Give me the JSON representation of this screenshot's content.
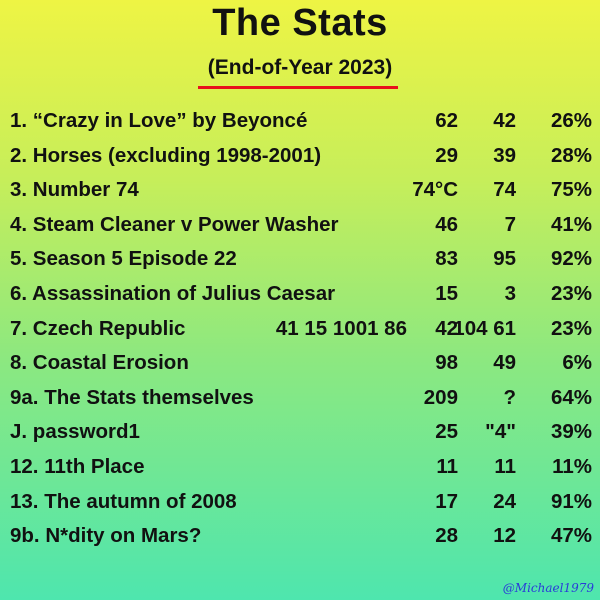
{
  "title": "The Stats",
  "subtitle": "(End-of-Year 2023)",
  "rows": [
    {
      "label": "1. “Crazy in Love” by Beyoncé",
      "extra": "",
      "c1": "62",
      "c2": "42",
      "c3": "26%"
    },
    {
      "label": "2. Horses (excluding 1998-2001)",
      "extra": "",
      "c1": "29",
      "c2": "39",
      "c3": "28%"
    },
    {
      "label": "3. Number 74",
      "extra": "",
      "c1": "74°C",
      "c2": "74",
      "c3": "75%"
    },
    {
      "label": "4. Steam Cleaner v Power Washer",
      "extra": "",
      "c1": "46",
      "c2": "7",
      "c3": "41%"
    },
    {
      "label": "5. Season 5 Episode 22",
      "extra": "",
      "c1": "83",
      "c2": "95",
      "c3": "92%"
    },
    {
      "label": "6. Assassination of Julius Caesar",
      "extra": "",
      "c1": "15",
      "c2": "3",
      "c3": "23%"
    },
    {
      "label": "7. Czech Republic",
      "extra": "41 15 1001 86",
      "c1": "42",
      "c2": "104 61",
      "c3": "23%"
    },
    {
      "label": "8. Coastal Erosion",
      "extra": "",
      "c1": "98",
      "c2": "49",
      "c3": "6%"
    },
    {
      "label": "9a. The Stats themselves",
      "extra": "",
      "c1": "209",
      "c2": "?",
      "c3": "64%"
    },
    {
      "label": "J. password1",
      "extra": "",
      "c1": "25",
      "c2": "\"4\"",
      "c3": "39%"
    },
    {
      "label": "12. 11th Place",
      "extra": "",
      "c1": "11",
      "c2": "11",
      "c3": "11%"
    },
    {
      "label": "13. The autumn of 2008",
      "extra": "",
      "c1": "17",
      "c2": "24",
      "c3": "91%"
    },
    {
      "label": "9b. N*dity on Mars?",
      "extra": "",
      "c1": "28",
      "c2": "12",
      "c3": "47%"
    }
  ],
  "watermark": "@Michael1979",
  "colors": {
    "underline": "#e8111b",
    "watermark": "#2a3bd8"
  }
}
